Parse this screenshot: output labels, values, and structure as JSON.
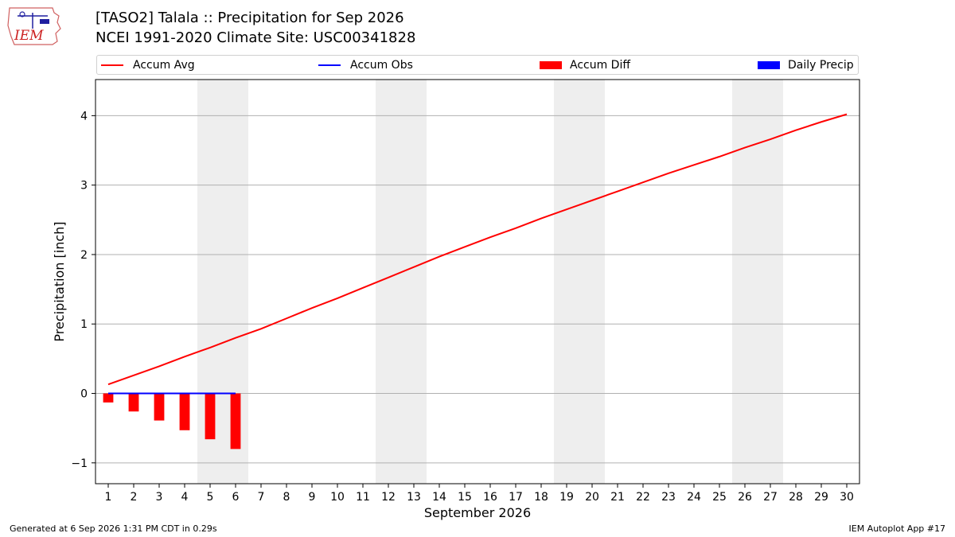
{
  "header": {
    "title_line1": "[TASO2] Talala :: Precipitation for Sep 2026",
    "title_line2": "NCEI 1991-2020 Climate Site: USC00341828"
  },
  "logo": {
    "text": "IEM"
  },
  "legend": {
    "items": [
      {
        "label": "Accum Avg",
        "kind": "line",
        "color": "#ff0000"
      },
      {
        "label": "Accum Obs",
        "kind": "line",
        "color": "#0000ff"
      },
      {
        "label": "Accum Diff",
        "kind": "rect",
        "color": "#ff0000"
      },
      {
        "label": "Daily Precip",
        "kind": "rect",
        "color": "#0000ff"
      }
    ]
  },
  "footer": {
    "left": "Generated at 6 Sep 2026 1:31 PM CDT in 0.29s",
    "right": "IEM Autoplot App #17"
  },
  "chart_data": {
    "type": "line",
    "xlabel": "September 2026",
    "ylabel": "Precipitation [inch]",
    "x": [
      1,
      2,
      3,
      4,
      5,
      6,
      7,
      8,
      9,
      10,
      11,
      12,
      13,
      14,
      15,
      16,
      17,
      18,
      19,
      20,
      21,
      22,
      23,
      24,
      25,
      26,
      27,
      28,
      29,
      30
    ],
    "xlim": [
      0.5,
      30.5
    ],
    "ylim": [
      -1.3,
      4.52
    ],
    "yticks": [
      -1,
      0,
      1,
      2,
      3,
      4
    ],
    "ytick_labels": [
      "−1",
      "0",
      "1",
      "2",
      "3",
      "4"
    ],
    "grid": "horizontal",
    "shaded_weekends": [
      [
        4.5,
        6.5
      ],
      [
        11.5,
        13.5
      ],
      [
        18.5,
        20.5
      ],
      [
        25.5,
        27.5
      ]
    ],
    "series": [
      {
        "name": "Accum Avg",
        "type": "line",
        "color": "#ff0000",
        "x": [
          1,
          2,
          3,
          4,
          5,
          6,
          7,
          8,
          9,
          10,
          11,
          12,
          13,
          14,
          15,
          16,
          17,
          18,
          19,
          20,
          21,
          22,
          23,
          24,
          25,
          26,
          27,
          28,
          29,
          30
        ],
        "values": [
          0.13,
          0.26,
          0.39,
          0.53,
          0.66,
          0.8,
          0.93,
          1.08,
          1.23,
          1.37,
          1.52,
          1.67,
          1.82,
          1.97,
          2.11,
          2.25,
          2.38,
          2.52,
          2.65,
          2.78,
          2.91,
          3.04,
          3.17,
          3.29,
          3.41,
          3.54,
          3.66,
          3.79,
          3.91,
          4.02
        ]
      },
      {
        "name": "Accum Obs",
        "type": "line",
        "color": "#0000ff",
        "x": [
          1,
          2,
          3,
          4,
          5,
          6
        ],
        "values": [
          0,
          0,
          0,
          0,
          0,
          0
        ]
      },
      {
        "name": "Accum Diff",
        "type": "bar",
        "color": "#ff0000",
        "x": [
          1,
          2,
          3,
          4,
          5,
          6
        ],
        "values": [
          -0.13,
          -0.26,
          -0.39,
          -0.53,
          -0.66,
          -0.8
        ]
      },
      {
        "name": "Daily Precip",
        "type": "bar",
        "color": "#0000ff",
        "x": [
          1,
          2,
          3,
          4,
          5,
          6
        ],
        "values": [
          0,
          0,
          0,
          0,
          0,
          0
        ]
      }
    ]
  }
}
